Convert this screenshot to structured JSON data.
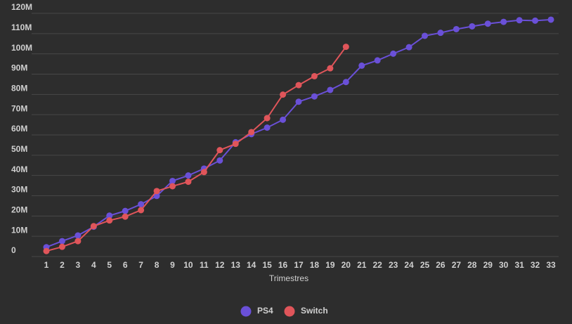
{
  "chart_data": {
    "type": "line",
    "x_label": "Trimestres",
    "x": [
      1,
      2,
      3,
      4,
      5,
      6,
      7,
      8,
      9,
      10,
      11,
      12,
      13,
      14,
      15,
      16,
      17,
      18,
      19,
      20,
      21,
      22,
      23,
      24,
      25,
      26,
      27,
      28,
      29,
      30,
      31,
      32,
      33
    ],
    "xlim": [
      1,
      33
    ],
    "ylim": [
      0,
      120
    ],
    "yticks": [
      0,
      {
        "value": 10,
        "label": "10M"
      },
      {
        "value": 20,
        "label": "20M"
      },
      {
        "value": 30,
        "label": "30M"
      },
      {
        "value": 40,
        "label": "40M"
      },
      {
        "value": 50,
        "label": "50M"
      },
      {
        "value": 60,
        "label": "60M"
      },
      {
        "value": 70,
        "label": "70M"
      },
      {
        "value": 80,
        "label": "80M"
      },
      {
        "value": 90,
        "label": "90M"
      },
      {
        "value": 100,
        "label": "100M"
      },
      {
        "value": 110,
        "label": "110M"
      },
      {
        "value": 120,
        "label": "120M"
      }
    ],
    "grid": true,
    "legend": "bottom",
    "series": [
      {
        "name": "PS4",
        "color": "#6a50d8",
        "values": [
          4.6,
          7.6,
          10.4,
          14.7,
          20.2,
          22.5,
          25.8,
          29.9,
          37.3,
          40.0,
          43.4,
          47.4,
          56.4,
          60.4,
          63.6,
          67.5,
          76.4,
          79.0,
          82.2,
          86.1,
          94.2,
          96.8,
          100.1,
          103.3,
          108.9,
          110.4,
          112.2,
          113.6,
          114.9,
          115.8,
          116.6,
          116.4,
          116.9
        ]
      },
      {
        "name": "Switch",
        "color": "#e0555a",
        "values": [
          2.7,
          4.8,
          7.6,
          15.0,
          17.8,
          19.7,
          22.9,
          32.3,
          34.7,
          36.9,
          41.7,
          52.5,
          55.6,
          61.4,
          68.3,
          79.9,
          84.6,
          89.0,
          92.9,
          103.5,
          null,
          null,
          null,
          null,
          null,
          null,
          null,
          null,
          null,
          null,
          null,
          null,
          null
        ]
      }
    ]
  }
}
